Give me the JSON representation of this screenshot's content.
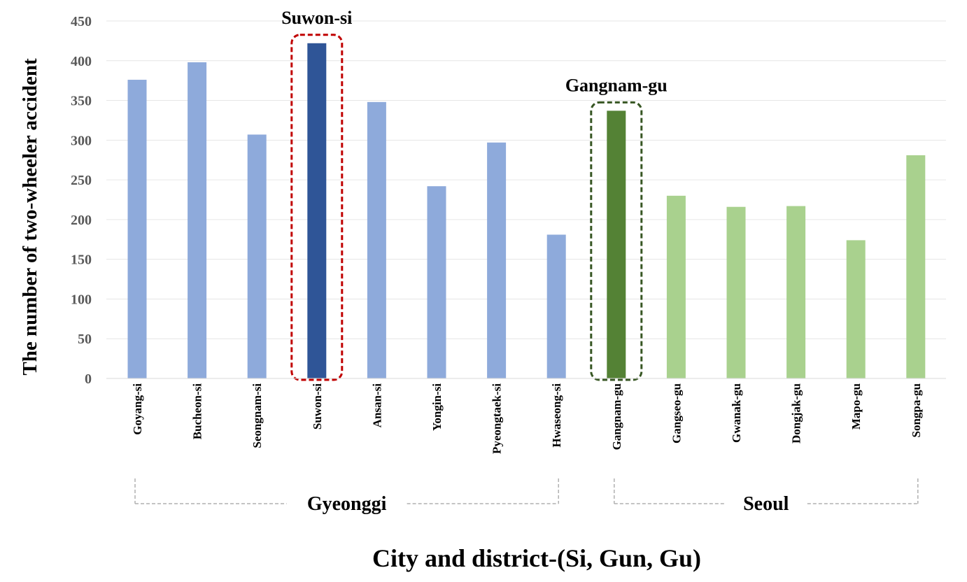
{
  "chart_data": {
    "type": "bar",
    "title": "",
    "xlabel": "City and district-(Si, Gun, Gu)",
    "ylabel": "The number of two-wheeler accident",
    "ylim": [
      0,
      450
    ],
    "yticks": [
      0,
      50,
      100,
      150,
      200,
      250,
      300,
      350,
      400,
      450
    ],
    "ytick_labels": [
      "0",
      "50",
      "100",
      "150",
      "200",
      "250",
      "300",
      "350",
      "400",
      "450"
    ],
    "grid": true,
    "categories": [
      "Goyang-si",
      "Bucheon-si",
      "Seongnam-si",
      "Suwon-si",
      "Ansan-si",
      "Yongin-si",
      "Pyeongtaek-si",
      "Hwaseong-si",
      "Gangnam-gu",
      "Gangseo-gu",
      "Gwanak-gu",
      "Dongjak-gu",
      "Mapo-gu",
      "Songpa-gu"
    ],
    "values": [
      376,
      398,
      307,
      422,
      348,
      242,
      297,
      181,
      337,
      230,
      216,
      217,
      174,
      281
    ],
    "bar_colors": [
      "#8eaadb",
      "#8eaadb",
      "#8eaadb",
      "#2f5597",
      "#8eaadb",
      "#8eaadb",
      "#8eaadb",
      "#8eaadb",
      "#548235",
      "#a9d18e",
      "#a9d18e",
      "#a9d18e",
      "#a9d18e",
      "#a9d18e"
    ],
    "groups": [
      {
        "label": "Gyeonggi",
        "from": "Goyang-si",
        "to": "Hwaseong-si"
      },
      {
        "label": "Seoul",
        "from": "Gangnam-gu",
        "to": "Songpa-gu"
      }
    ],
    "highlights": [
      {
        "label": "Suwon-si",
        "category": "Suwon-si",
        "color": "#c00000"
      },
      {
        "label": "Gangnam-gu",
        "category": "Gangnam-gu",
        "color": "#375623"
      }
    ]
  }
}
